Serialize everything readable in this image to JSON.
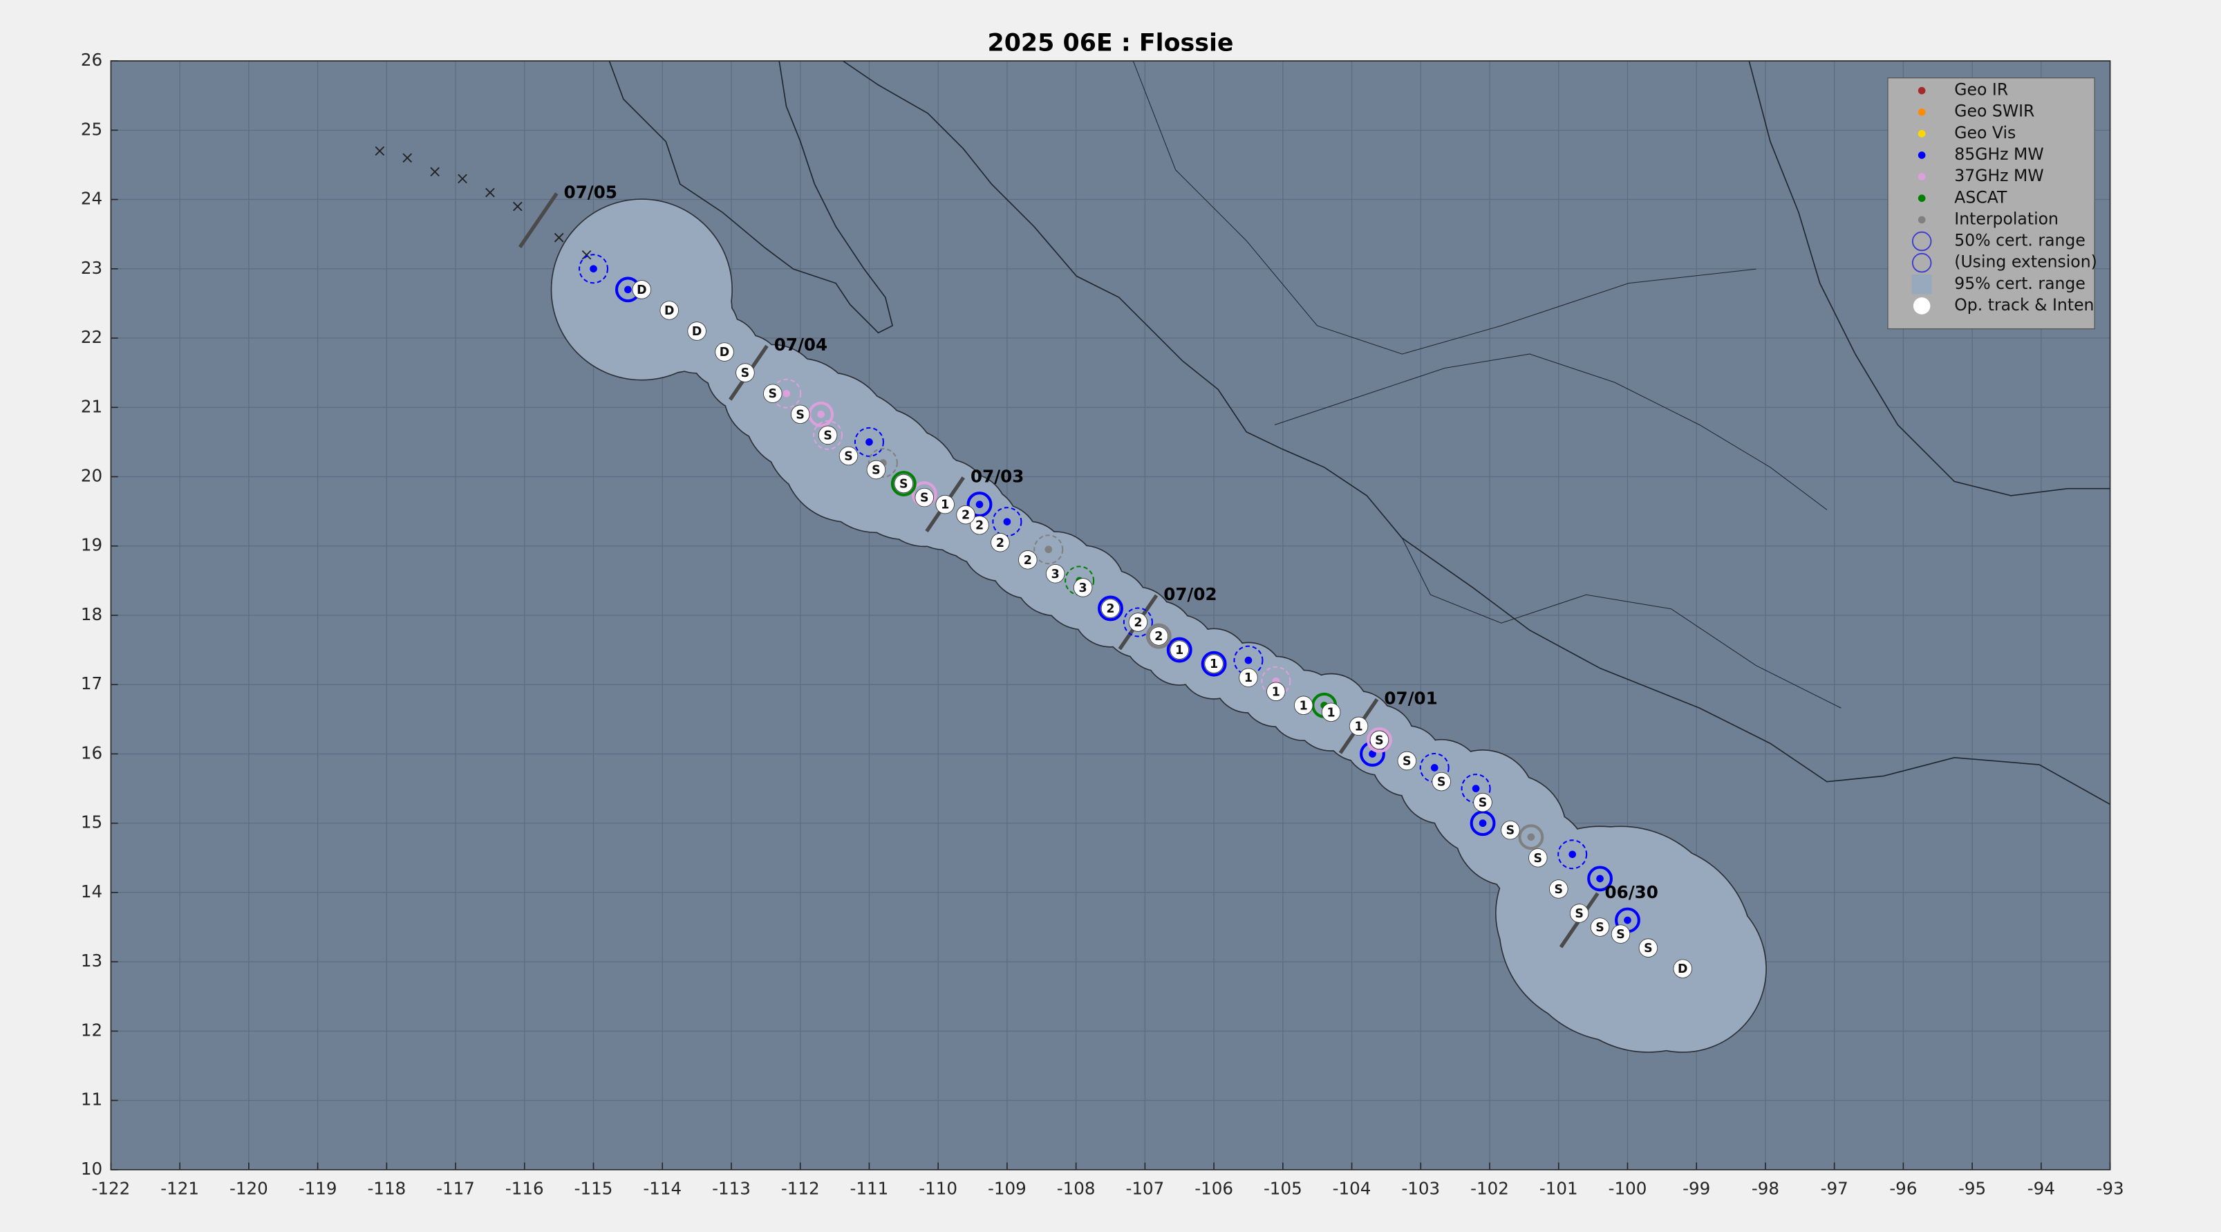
{
  "chart_data": {
    "type": "track",
    "title": "2025  06E :  Flossie",
    "xlim": [
      -122,
      -93
    ],
    "xticks": [
      -122,
      -121,
      -120,
      -119,
      -118,
      -117,
      -116,
      -115,
      -114,
      -113,
      -112,
      -111,
      -110,
      -109,
      -108,
      -107,
      -106,
      -105,
      -104,
      -103,
      -102,
      -101,
      -100,
      -99,
      -98,
      -97,
      -96,
      -95,
      -94,
      -93
    ],
    "ylim": [
      10,
      26
    ],
    "yticks": [
      10,
      11,
      12,
      13,
      14,
      15,
      16,
      17,
      18,
      19,
      20,
      21,
      22,
      23,
      24,
      25,
      26
    ],
    "grid": true,
    "legend_position": "upper right",
    "track": {
      "color": "#ffffff",
      "x": [
        -99.2,
        -99.7,
        -100.1,
        -100.4,
        -100.7,
        -101.0,
        -101.3,
        -101.7,
        -102.1,
        -102.7,
        -103.2,
        -103.6,
        -103.9,
        -104.3,
        -104.7,
        -105.1,
        -105.5,
        -106.0,
        -106.5,
        -106.8,
        -107.1,
        -107.5,
        -107.9,
        -108.3,
        -108.7,
        -109.1,
        -109.4,
        -109.6,
        -109.9,
        -110.2,
        -110.5,
        -110.9,
        -111.3,
        -111.6,
        -112.0,
        -112.4,
        -112.8,
        -113.1,
        -113.5,
        -113.9,
        -114.3
      ],
      "y": [
        12.9,
        13.2,
        13.4,
        13.5,
        13.7,
        14.05,
        14.5,
        14.9,
        15.3,
        15.6,
        15.9,
        16.2,
        16.4,
        16.6,
        16.7,
        16.9,
        17.1,
        17.3,
        17.5,
        17.7,
        17.9,
        18.1,
        18.4,
        18.6,
        18.8,
        19.05,
        19.3,
        19.45,
        19.6,
        19.7,
        19.9,
        20.1,
        20.3,
        20.6,
        20.9,
        21.2,
        21.5,
        21.8,
        22.1,
        22.4,
        22.7
      ],
      "labels": [
        "D",
        "S",
        "S",
        "S",
        "S",
        "S",
        "S",
        "S",
        "S",
        "S",
        "S",
        "S",
        "1",
        "1",
        "1",
        "1",
        "1",
        "1",
        "1",
        "2",
        "2",
        "2",
        "3",
        "3",
        "2",
        "2",
        "2",
        "2",
        "1",
        "S",
        "S",
        "S",
        "S",
        "S",
        "S",
        "S",
        "S",
        "D",
        "D",
        "D",
        "D"
      ],
      "certainty_color": "#98a8bd",
      "certainty_radius": [
        1.2,
        1.5,
        1.55,
        1.45,
        1.2,
        0.75,
        0.7,
        0.8,
        0.75,
        0.6,
        0.5,
        0.5,
        0.5,
        0.55,
        0.5,
        0.5,
        0.5,
        0.5,
        0.5,
        0.5,
        0.5,
        0.55,
        0.6,
        0.6,
        0.55,
        0.55,
        0.55,
        0.6,
        0.65,
        0.7,
        0.8,
        0.9,
        0.95,
        0.9,
        0.8,
        0.7,
        0.55,
        0.5,
        0.6,
        0.9,
        1.3
      ]
    },
    "forecast": {
      "x": [
        -118.1,
        -117.7,
        -117.3,
        -116.9,
        -116.5,
        -116.1,
        -115.5,
        -115.1
      ],
      "y": [
        24.7,
        24.6,
        24.4,
        24.3,
        24.1,
        23.9,
        23.45,
        23.2
      ]
    },
    "dates": {
      "x": [
        -100.7,
        -103.9,
        -107.1,
        -109.9,
        -112.75,
        -115.8
      ],
      "y": [
        13.6,
        16.4,
        17.9,
        19.6,
        21.5,
        23.7
      ],
      "labels": [
        "06/30",
        "07/01",
        "07/02",
        "07/03",
        "07/04",
        "07/05"
      ]
    },
    "series": [
      {
        "name": "Geo IR",
        "color": "#a52a2a",
        "x": [],
        "y": []
      },
      {
        "name": "Geo SWIR",
        "color": "#ff8c00",
        "x": [],
        "y": []
      },
      {
        "name": "Geo Vis",
        "color": "#ffd700",
        "x": [],
        "y": []
      },
      {
        "name": "85GHz MW",
        "color": "#0000ff",
        "x": [
          -100.0,
          -100.8,
          -102.1,
          -102.8,
          -103.7,
          -105.5,
          -106.5,
          -107.1,
          -107.5,
          -109.0,
          -109.4,
          -111.0,
          -114.5,
          -115.0,
          -100.4,
          -102.2,
          -106.0
        ],
        "y": [
          13.6,
          14.55,
          15.0,
          15.8,
          16.0,
          17.35,
          17.5,
          17.9,
          18.1,
          19.35,
          19.6,
          20.5,
          22.7,
          23.0,
          14.2,
          15.5,
          17.3
        ]
      },
      {
        "name": "37GHz MW",
        "color": "#dda0dd",
        "x": [
          -103.6,
          -105.1,
          -110.2,
          -111.6,
          -111.7,
          -112.2
        ],
        "y": [
          16.2,
          17.05,
          19.75,
          20.6,
          20.9,
          21.2
        ]
      },
      {
        "name": "ASCAT",
        "color": "#008000",
        "x": [
          -104.4,
          -107.95,
          -110.5
        ],
        "y": [
          16.7,
          18.5,
          19.9
        ]
      },
      {
        "name": "Interpolation",
        "color": "#808080",
        "x": [
          -101.4,
          -108.4,
          -106.8,
          -110.8
        ],
        "y": [
          14.8,
          18.95,
          17.7,
          20.2
        ]
      }
    ],
    "legend_extra": [
      {
        "label": "50% cert. range",
        "color": "#3a3ad0",
        "marker": "ring"
      },
      {
        "label": "(Using extension)",
        "color": "#3a3ad0",
        "marker": "ring"
      },
      {
        "label": "95% cert. range",
        "color": "#98a8bd",
        "marker": "square"
      },
      {
        "label": "Op. track & Inten",
        "color": "#ffffff",
        "marker": "dot"
      }
    ]
  }
}
